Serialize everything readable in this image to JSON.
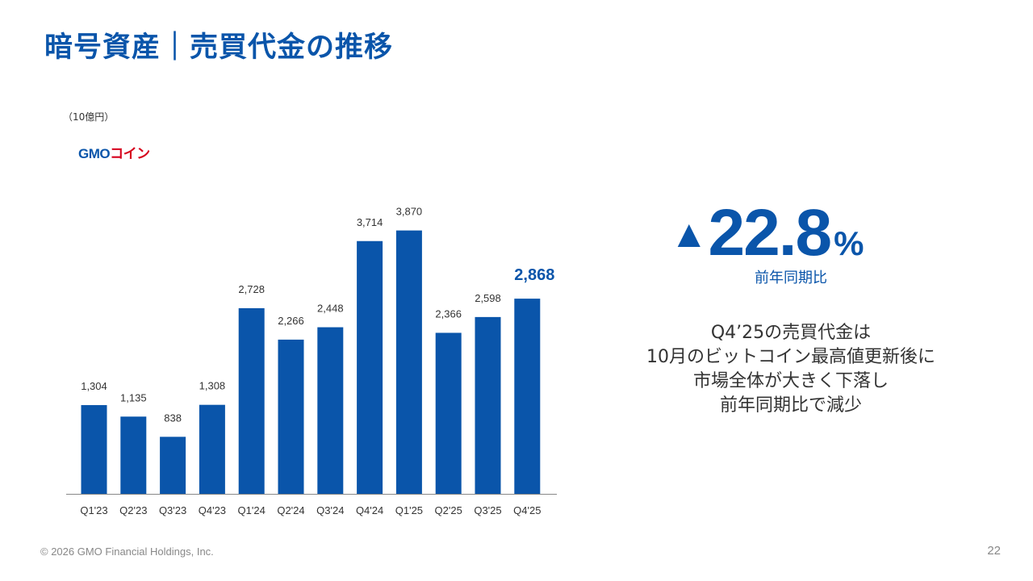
{
  "header": {
    "title": "暗号資産｜売買代金の推移"
  },
  "unit_label": "（10億円）",
  "logo": {
    "gmo": "GMO",
    "coin": "コイン"
  },
  "colors": {
    "primary": "#0a55aa",
    "bar": "#0a55aa",
    "logo_red": "#d6001c"
  },
  "chart_data": {
    "type": "bar",
    "title": "暗号資産｜売買代金の推移",
    "ylabel": "（10億円）",
    "xlabel": "",
    "categories": [
      "Q1'23",
      "Q2'23",
      "Q3'23",
      "Q4'23",
      "Q1'24",
      "Q2'24",
      "Q3'24",
      "Q4'24",
      "Q1'25",
      "Q2'25",
      "Q3'25",
      "Q4'25"
    ],
    "values": [
      1304,
      1135,
      838,
      1308,
      2728,
      2266,
      2448,
      3714,
      3870,
      2366,
      2598,
      2868
    ],
    "value_labels": [
      "1,304",
      "1,135",
      "838",
      "1,308",
      "2,728",
      "2,266",
      "2,448",
      "3,714",
      "3,870",
      "2,366",
      "2,598",
      "2,868"
    ],
    "highlight_index": 11,
    "ylim": [
      0,
      4500
    ],
    "grid": false,
    "legend": "none"
  },
  "highlight": {
    "triangle": "▲",
    "value": "22.8",
    "percent": "%",
    "label": "前年同期比"
  },
  "description": {
    "lines": [
      "Q4’25の売買代金は",
      "10月のビットコイン最高値更新後に",
      "市場全体が大きく下落し",
      "前年同期比で減少"
    ]
  },
  "footer": {
    "copyright": "© 2026 GMO Financial Holdings, Inc.",
    "page_number": "22"
  }
}
